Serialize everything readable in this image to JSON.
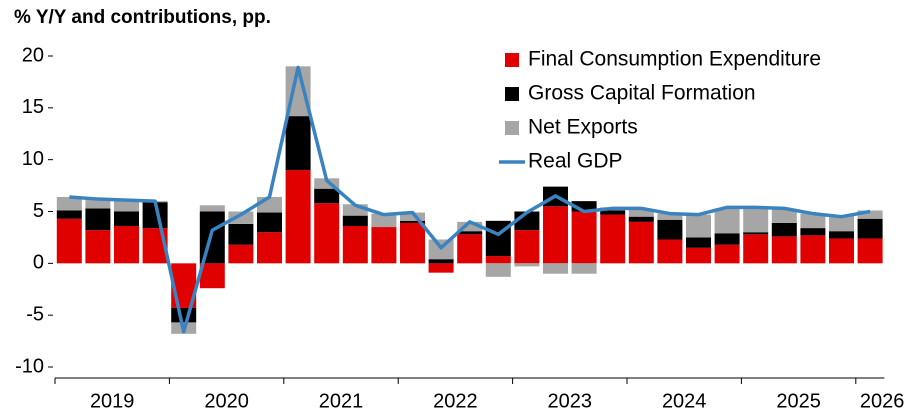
{
  "chart_data": {
    "type": "stacked_bar_line",
    "title": "% Y/Y and contributions, pp.",
    "categories": [
      null,
      null,
      null,
      null,
      null,
      null,
      null,
      null,
      null,
      null,
      null,
      null,
      null,
      null,
      null,
      null,
      null,
      null,
      null,
      null,
      null,
      null,
      null,
      null,
      null,
      null,
      null,
      null,
      null
    ],
    "year_labels": [
      "2019",
      "2020",
      "2021",
      "2022",
      "2023",
      "2024",
      "2025",
      "2026"
    ],
    "series": [
      {
        "name": "Final Consumption Expenditure",
        "color": "#e00000",
        "kind": "bar",
        "values": [
          4.3,
          3.2,
          3.6,
          3.4,
          -4.3,
          -2.4,
          1.8,
          3.0,
          9.0,
          5.8,
          3.6,
          3.5,
          3.9,
          -0.9,
          2.8,
          0.7,
          3.2,
          5.5,
          5.0,
          4.7,
          4.0,
          2.3,
          1.5,
          1.8,
          2.8,
          2.6,
          2.7,
          2.4,
          2.4
        ]
      },
      {
        "name": "Gross Capital Formation",
        "color": "#000000",
        "kind": "bar",
        "values": [
          0.8,
          2.1,
          1.4,
          2.5,
          -1.4,
          5.0,
          2.0,
          1.9,
          5.2,
          1.4,
          1.0,
          0.0,
          0.2,
          0.4,
          0.3,
          3.4,
          1.8,
          1.9,
          1.0,
          0.4,
          0.5,
          1.9,
          1.0,
          1.1,
          0.2,
          1.3,
          0.7,
          0.7,
          1.9
        ]
      },
      {
        "name": "Net Exports",
        "color": "#a6a6a6",
        "kind": "bar",
        "values": [
          1.3,
          0.8,
          1.0,
          0.1,
          -1.1,
          0.6,
          1.2,
          1.5,
          4.8,
          1.0,
          1.1,
          1.3,
          0.8,
          1.9,
          0.9,
          -1.3,
          -0.3,
          -1.0,
          -1.0,
          0.3,
          0.7,
          0.6,
          2.2,
          2.4,
          2.4,
          1.3,
          1.4,
          1.5,
          0.8
        ]
      },
      {
        "name": "Real GDP",
        "color": "#3a83c1",
        "kind": "line",
        "values": [
          6.4,
          6.2,
          6.1,
          6.0,
          -6.6,
          3.2,
          4.7,
          6.4,
          18.9,
          8.0,
          5.6,
          4.7,
          4.9,
          1.5,
          4.0,
          2.8,
          4.9,
          6.5,
          5.0,
          5.3,
          5.3,
          4.8,
          4.7,
          5.4,
          5.4,
          5.3,
          4.8,
          4.5,
          5.0
        ]
      }
    ],
    "ylim": [
      -10,
      20
    ],
    "yticks": [
      -10,
      -5,
      0,
      5,
      10,
      15,
      20
    ],
    "legend": "upper right"
  }
}
